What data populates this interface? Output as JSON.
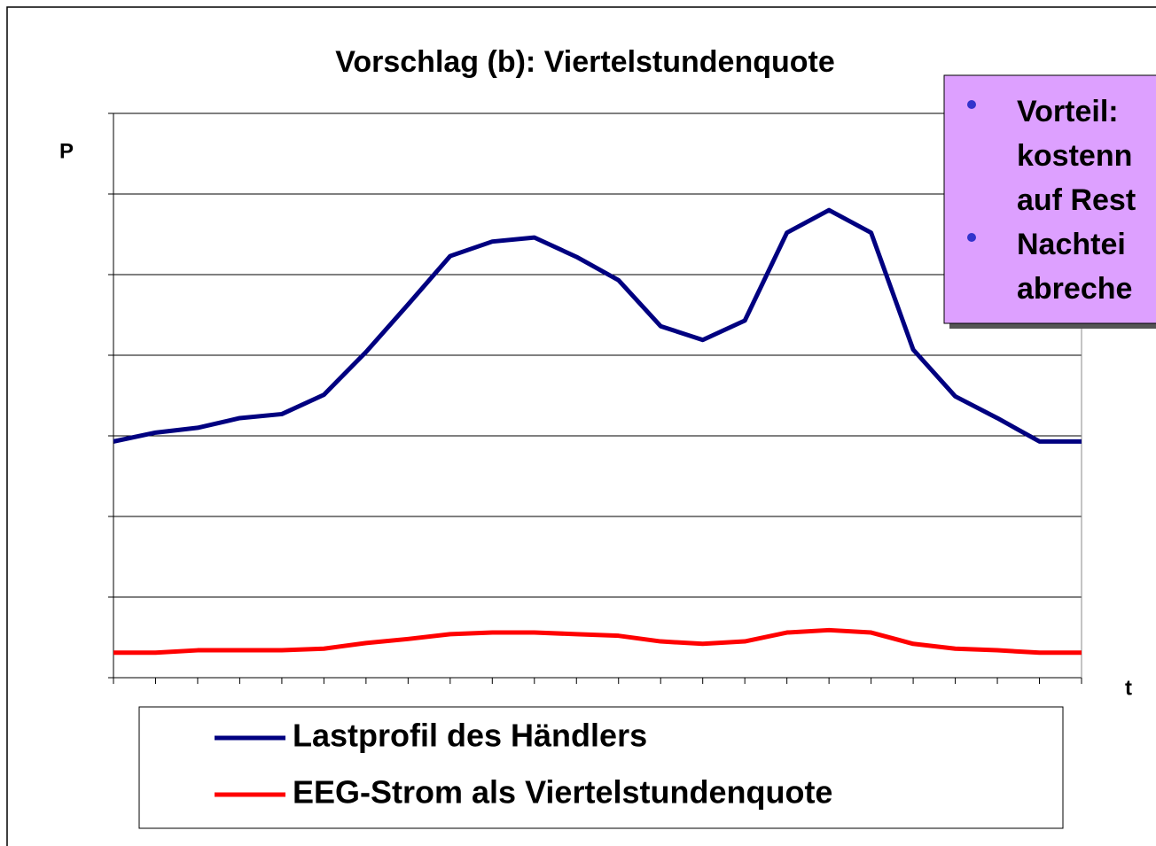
{
  "chart_data": {
    "type": "line",
    "title": "Vorschlag (b): Viertelstundenquote",
    "y_label": "P",
    "x_label": "t",
    "categories": [
      null,
      null,
      null,
      null,
      null,
      null,
      null,
      null,
      null,
      null,
      null,
      null,
      null,
      null,
      null,
      null,
      null,
      null,
      null,
      null,
      null,
      null,
      null,
      null
    ],
    "series": [
      {
        "name": "Lastprofil des Händlers",
        "color": "#000080",
        "values": [
          2.93,
          3.04,
          3.1,
          3.22,
          3.27,
          3.51,
          4.04,
          4.63,
          5.23,
          5.41,
          5.46,
          5.22,
          4.93,
          4.36,
          4.19,
          4.43,
          5.52,
          5.8,
          5.52,
          4.07,
          3.49,
          3.22,
          2.93,
          2.93
        ]
      },
      {
        "name": "EEG-Strom als Viertelstundenquote",
        "color": "#ff0000",
        "values": [
          0.31,
          0.31,
          0.34,
          0.34,
          0.34,
          0.36,
          0.43,
          0.48,
          0.54,
          0.56,
          0.56,
          0.54,
          0.52,
          0.45,
          0.42,
          0.45,
          0.56,
          0.59,
          0.56,
          0.42,
          0.36,
          0.34,
          0.31,
          0.31
        ]
      }
    ],
    "ylim": [
      0,
      7
    ],
    "yticks": [
      0,
      1,
      2,
      3,
      4,
      5,
      6,
      7
    ],
    "grid": true
  },
  "callout": {
    "bullets": [
      {
        "lines": [
          "Vorteil:",
          "kostenn",
          "auf Rest"
        ]
      },
      {
        "lines": [
          "Nachtei",
          "abreche"
        ]
      }
    ]
  }
}
